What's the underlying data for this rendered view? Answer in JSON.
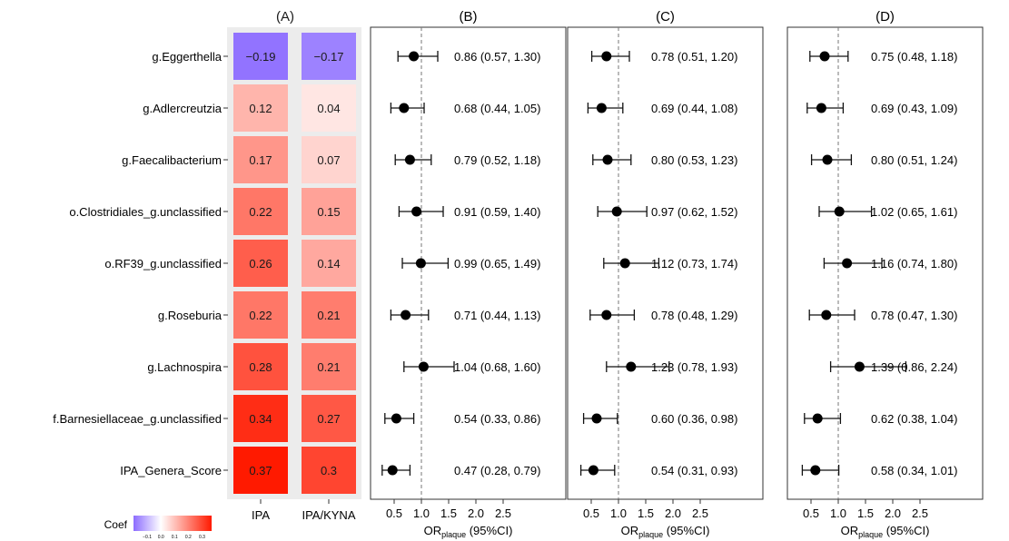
{
  "chart_data": [
    {
      "type": "heatmap",
      "panel_label": "(A)",
      "rows": [
        "g.Eggerthella",
        "g.Adlercreutzia",
        "g.Faecalibacterium",
        "o.Clostridiales_g.unclassified",
        "o.RF39_g.unclassified",
        "g.Roseburia",
        "g.Lachnospira",
        "f.Barnesiellaceae_g.unclassified",
        "IPA_Genera_Score"
      ],
      "columns": [
        "IPA",
        "IPA/KYNA"
      ],
      "values": [
        [
          -0.19,
          -0.17
        ],
        [
          0.12,
          0.04
        ],
        [
          0.17,
          0.07
        ],
        [
          0.22,
          0.15
        ],
        [
          0.26,
          0.14
        ],
        [
          0.22,
          0.21
        ],
        [
          0.28,
          0.21
        ],
        [
          0.34,
          0.27
        ],
        [
          0.37,
          0.3
        ]
      ],
      "value_labels": [
        [
          "−0.19",
          "−0.17"
        ],
        [
          "0.12",
          "0.04"
        ],
        [
          "0.17",
          "0.07"
        ],
        [
          "0.22",
          "0.15"
        ],
        [
          "0.26",
          "0.14"
        ],
        [
          "0.22",
          "0.21"
        ],
        [
          "0.28",
          "0.21"
        ],
        [
          "0.34",
          "0.27"
        ],
        [
          "0.37",
          "0.3"
        ]
      ],
      "legend": {
        "title": "Coef",
        "tick_labels": [
          "−0.1",
          "0.0",
          "0.1",
          "0.2",
          "0.3"
        ],
        "range": [
          -0.2,
          0.37
        ],
        "low_color": "#8c6cff",
        "mid_color": "#ffffff",
        "high_color": "#ff1a00"
      }
    },
    {
      "type": "scatter",
      "subtype": "forest",
      "panel_label": "(B)",
      "xlim": [
        0.2,
        3.0
      ],
      "reference_line": 1.0,
      "x_ticks": [
        "0.5",
        "1.0",
        "1.5",
        "2.0",
        "2.5"
      ],
      "xlabel_main": "OR",
      "xlabel_sub": "plaque",
      "xlabel_suffix": " (95%CI)",
      "estimates": [
        {
          "or": 0.86,
          "low": 0.57,
          "high": 1.3,
          "label": "0.86 (0.57, 1.30)"
        },
        {
          "or": 0.68,
          "low": 0.44,
          "high": 1.05,
          "label": "0.68 (0.44, 1.05)"
        },
        {
          "or": 0.79,
          "low": 0.52,
          "high": 1.18,
          "label": "0.79 (0.52, 1.18)"
        },
        {
          "or": 0.91,
          "low": 0.59,
          "high": 1.4,
          "label": "0.91 (0.59, 1.40)"
        },
        {
          "or": 0.99,
          "low": 0.65,
          "high": 1.49,
          "label": "0.99 (0.65, 1.49)"
        },
        {
          "or": 0.71,
          "low": 0.44,
          "high": 1.13,
          "label": "0.71 (0.44, 1.13)"
        },
        {
          "or": 1.04,
          "low": 0.68,
          "high": 1.6,
          "label": "1.04 (0.68, 1.60)"
        },
        {
          "or": 0.54,
          "low": 0.33,
          "high": 0.86,
          "label": "0.54 (0.33, 0.86)"
        },
        {
          "or": 0.47,
          "low": 0.28,
          "high": 0.79,
          "label": "0.47 (0.28, 0.79)"
        }
      ]
    },
    {
      "type": "scatter",
      "subtype": "forest",
      "panel_label": "(C)",
      "xlim": [
        0.2,
        3.0
      ],
      "reference_line": 1.0,
      "x_ticks": [
        "0.5",
        "1.0",
        "1.5",
        "2.0",
        "2.5"
      ],
      "xlabel_main": "OR",
      "xlabel_sub": "plaque",
      "xlabel_suffix": " (95%CI)",
      "estimates": [
        {
          "or": 0.78,
          "low": 0.51,
          "high": 1.2,
          "label": "0.78 (0.51, 1.20)"
        },
        {
          "or": 0.69,
          "low": 0.44,
          "high": 1.08,
          "label": "0.69 (0.44, 1.08)"
        },
        {
          "or": 0.8,
          "low": 0.53,
          "high": 1.23,
          "label": "0.80 (0.53, 1.23)"
        },
        {
          "or": 0.97,
          "low": 0.62,
          "high": 1.52,
          "label": "0.97 (0.62, 1.52)"
        },
        {
          "or": 1.12,
          "low": 0.73,
          "high": 1.74,
          "label": "1.12 (0.73, 1.74)"
        },
        {
          "or": 0.78,
          "low": 0.48,
          "high": 1.29,
          "label": "0.78 (0.48, 1.29)"
        },
        {
          "or": 1.23,
          "low": 0.78,
          "high": 1.93,
          "label": "1.23 (0.78, 1.93)"
        },
        {
          "or": 0.6,
          "low": 0.36,
          "high": 0.98,
          "label": "0.60 (0.36, 0.98)"
        },
        {
          "or": 0.54,
          "low": 0.31,
          "high": 0.93,
          "label": "0.54 (0.31, 0.93)"
        }
      ]
    },
    {
      "type": "scatter",
      "subtype": "forest",
      "panel_label": "(D)",
      "xlim": [
        0.2,
        3.0
      ],
      "reference_line": 1.0,
      "x_ticks": [
        "0.5",
        "1.0",
        "1.5",
        "2.0",
        "2.5"
      ],
      "xlabel_main": "OR",
      "xlabel_sub": "plaque",
      "xlabel_suffix": " (95%CI)",
      "estimates": [
        {
          "or": 0.75,
          "low": 0.48,
          "high": 1.18,
          "label": "0.75 (0.48, 1.18)"
        },
        {
          "or": 0.69,
          "low": 0.43,
          "high": 1.09,
          "label": "0.69 (0.43, 1.09)"
        },
        {
          "or": 0.8,
          "low": 0.51,
          "high": 1.24,
          "label": "0.80 (0.51, 1.24)"
        },
        {
          "or": 1.02,
          "low": 0.65,
          "high": 1.61,
          "label": "1.02 (0.65, 1.61)"
        },
        {
          "or": 1.16,
          "low": 0.74,
          "high": 1.8,
          "label": "1.16 (0.74, 1.80)"
        },
        {
          "or": 0.78,
          "low": 0.47,
          "high": 1.3,
          "label": "0.78 (0.47, 1.30)"
        },
        {
          "or": 1.39,
          "low": 0.86,
          "high": 2.24,
          "label": "1.39 (0.86, 2.24)"
        },
        {
          "or": 0.62,
          "low": 0.38,
          "high": 1.04,
          "label": "0.62 (0.38, 1.04)"
        },
        {
          "or": 0.58,
          "low": 0.34,
          "high": 1.01,
          "label": "0.58 (0.34, 1.01)"
        }
      ]
    }
  ]
}
